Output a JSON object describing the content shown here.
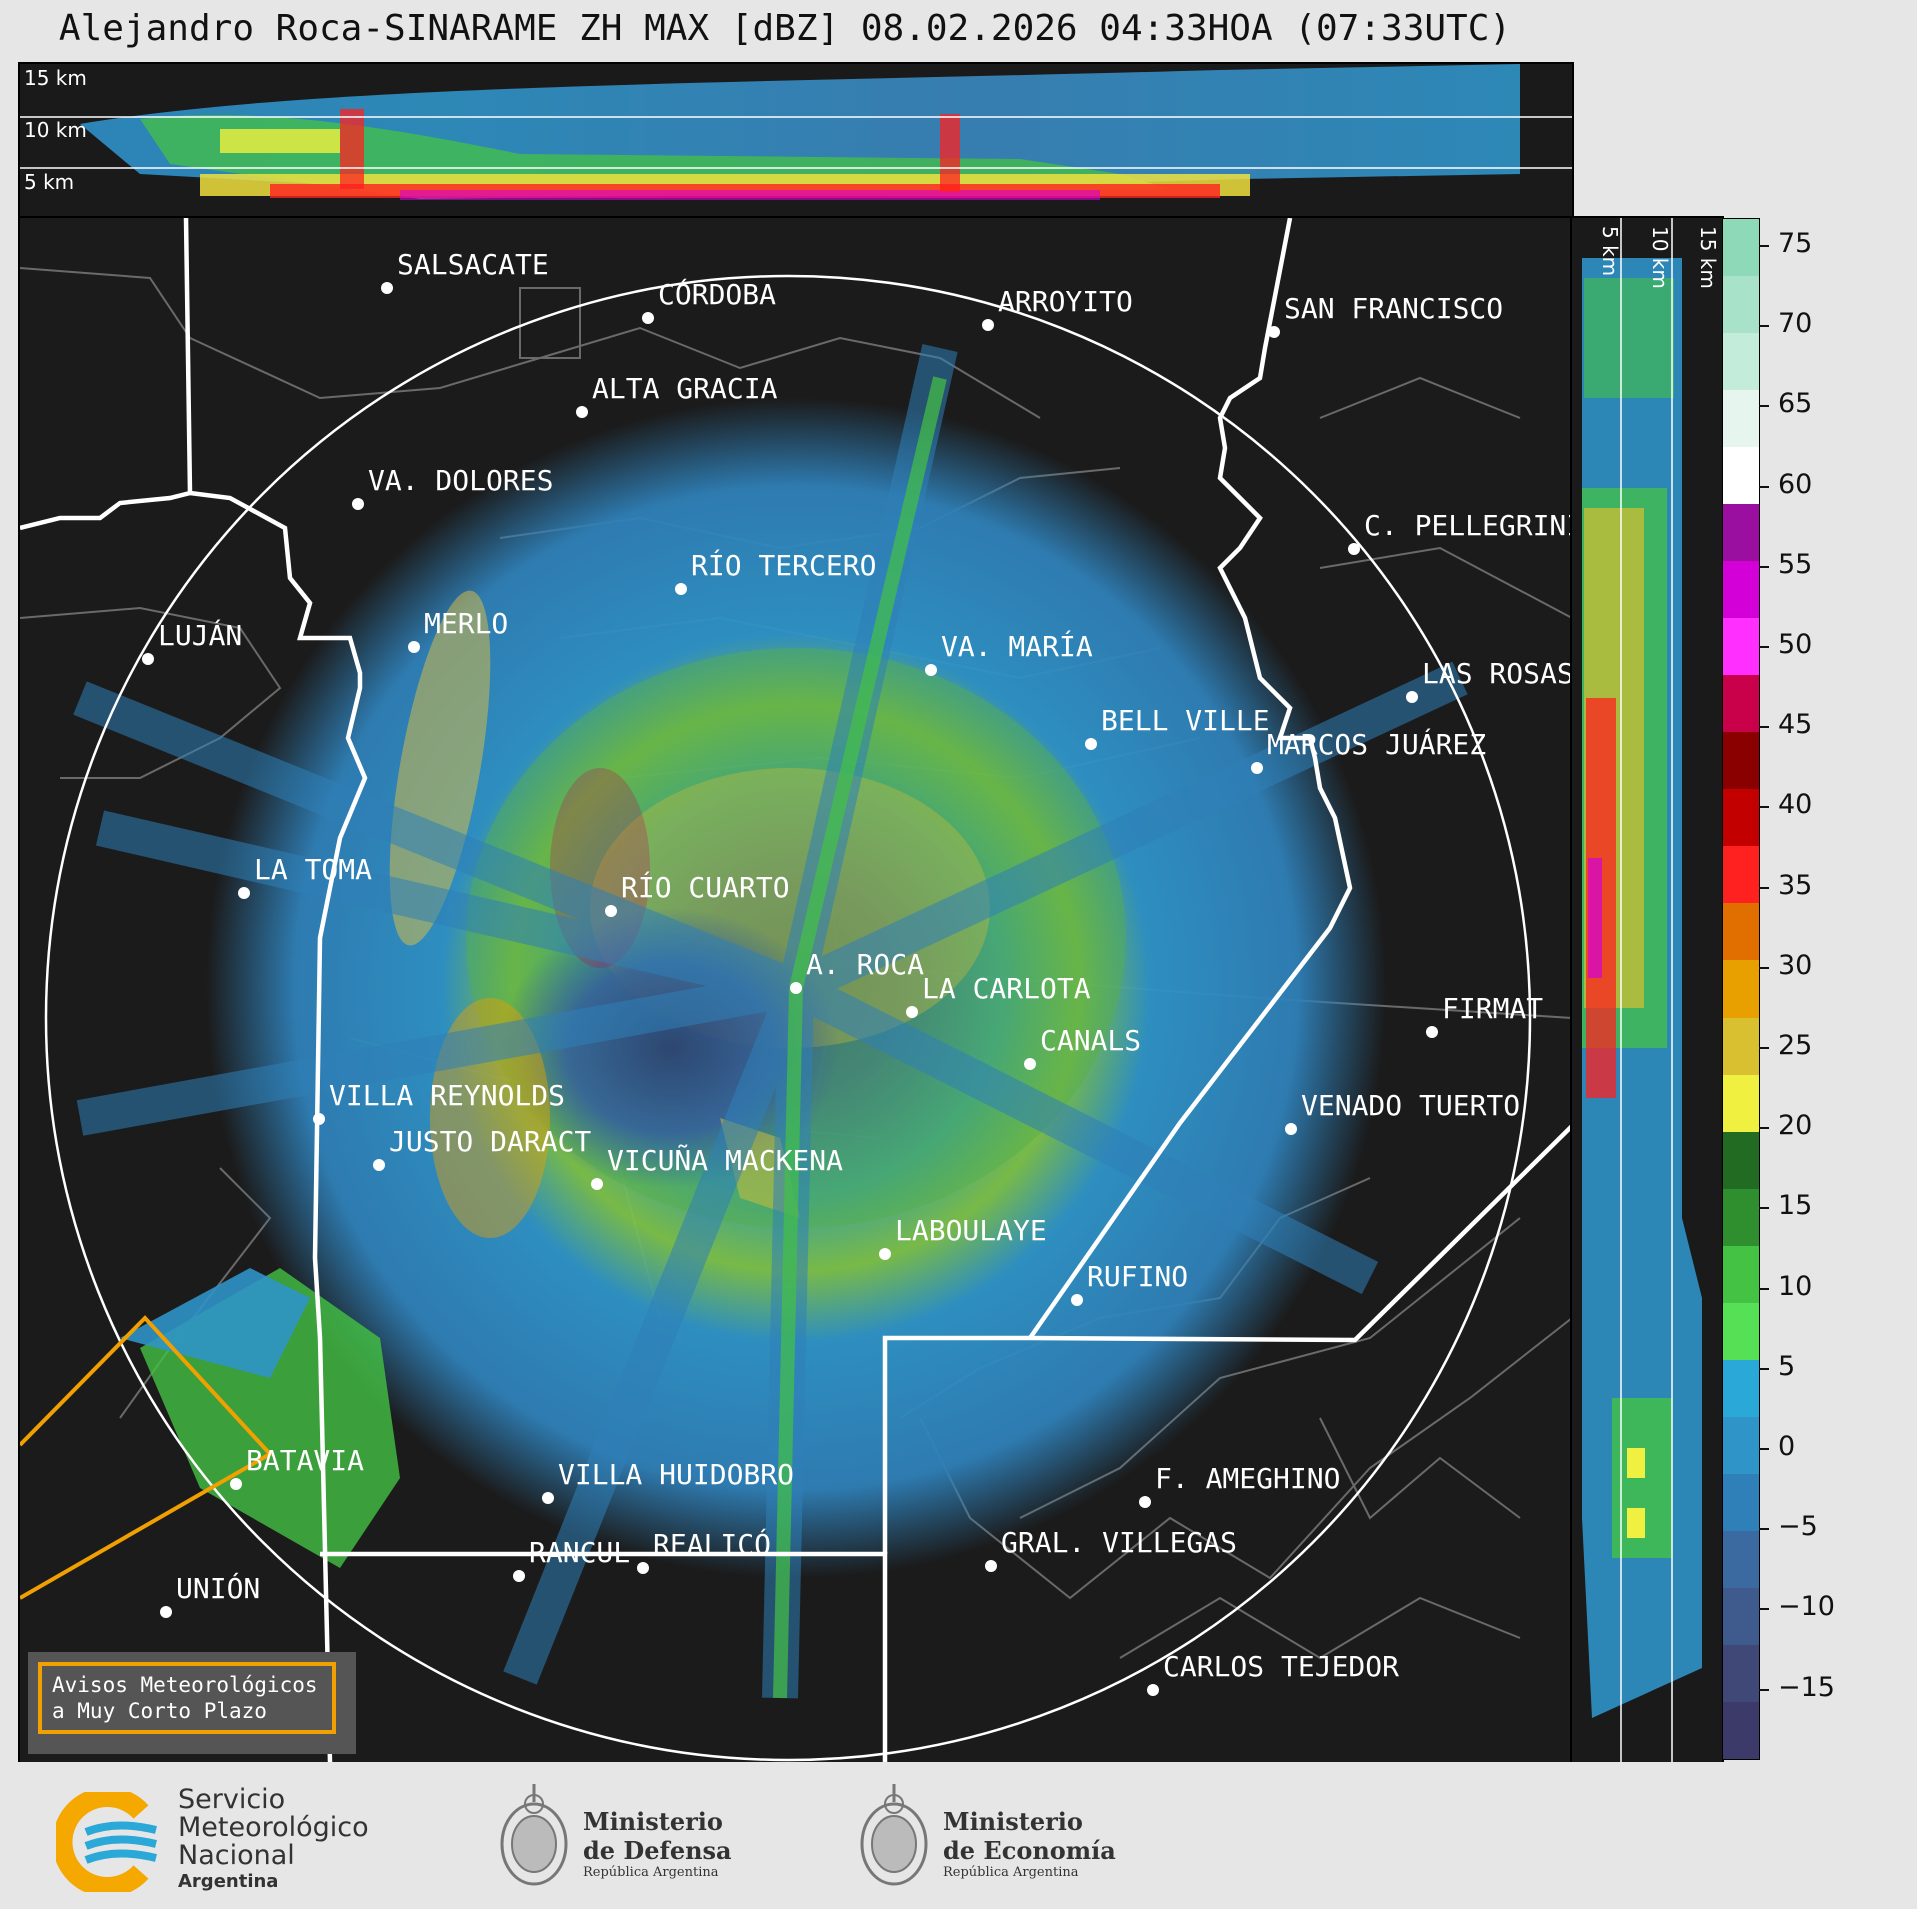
{
  "title": "Alejandro Roca-SINARAME ZH MAX [dBZ] 08.02.2026 04:33HOA (07:33UTC)",
  "top_panel": {
    "labels": [
      "15 km",
      "10 km",
      "5 km"
    ]
  },
  "side_panel": {
    "labels": [
      "5 km",
      "10 km",
      "15 km"
    ]
  },
  "colorbar": {
    "ticks": [
      "75",
      "70",
      "65",
      "60",
      "55",
      "50",
      "45",
      "40",
      "35",
      "30",
      "25",
      "20",
      "15",
      "10",
      "5",
      "0",
      "−5",
      "−10",
      "−15"
    ],
    "colors": [
      "#8ed9b8",
      "#a8e2c8",
      "#c4ecdb",
      "#e6f6ef",
      "#ffffff",
      "#9a0fa0",
      "#d400d8",
      "#ff30ff",
      "#c9004a",
      "#8a0000",
      "#c20000",
      "#ff2020",
      "#e06f00",
      "#e8a000",
      "#d8c030",
      "#f0f040",
      "#226b22",
      "#2f8f2f",
      "#44c244",
      "#55e055",
      "#2aa8d8",
      "#2f94c8",
      "#2f80b8",
      "#3a6aa0",
      "#3f5a8c",
      "#404878",
      "#3c3a68"
    ]
  },
  "cities": [
    {
      "name": "SALSACATE"
    },
    {
      "name": "CÓRDOBA"
    },
    {
      "name": "ARROYITO"
    },
    {
      "name": "SAN FRANCISCO"
    },
    {
      "name": "ALTA GRACIA"
    },
    {
      "name": "VA. DOLORES"
    },
    {
      "name": "C. PELLEGRINI"
    },
    {
      "name": "RÍO TERCERO"
    },
    {
      "name": "LUJÁN"
    },
    {
      "name": "MERLO"
    },
    {
      "name": "VA. MARÍA"
    },
    {
      "name": "LAS ROSAS"
    },
    {
      "name": "BELL VILLE"
    },
    {
      "name": "MARCOS JUÁREZ"
    },
    {
      "name": "LA TOMA"
    },
    {
      "name": "RÍO CUARTO"
    },
    {
      "name": "A. ROCA"
    },
    {
      "name": "LA CARLOTA"
    },
    {
      "name": "FIRMAT"
    },
    {
      "name": "CANALS"
    },
    {
      "name": "VILLA REYNOLDS"
    },
    {
      "name": "VENADO TUERTO"
    },
    {
      "name": "JUSTO DARACT"
    },
    {
      "name": "VICUÑA MACKENA"
    },
    {
      "name": "LABOULAYE"
    },
    {
      "name": "RUFINO"
    },
    {
      "name": "BATAVIA"
    },
    {
      "name": "VILLA HUIDOBRO"
    },
    {
      "name": "F. AMEGHINO"
    },
    {
      "name": "RANCUL"
    },
    {
      "name": "REALICÓ"
    },
    {
      "name": "GRAL. VILLEGAS"
    },
    {
      "name": "UNIÓN"
    },
    {
      "name": "CARLOS TEJEDOR"
    }
  ],
  "alert_box": {
    "line1": "Avisos Meteorológicos",
    "line2": "a Muy Corto Plazo"
  },
  "logos": {
    "smn": {
      "line1": "Servicio",
      "line2": "Meteorológico",
      "line3": "Nacional",
      "line4": "Argentina"
    },
    "defensa": {
      "line1": "Ministerio",
      "line2": "de Defensa",
      "line3": "República Argentina"
    },
    "economia": {
      "line1": "Ministerio",
      "line2": "de Economía",
      "line3": "República Argentina"
    }
  }
}
